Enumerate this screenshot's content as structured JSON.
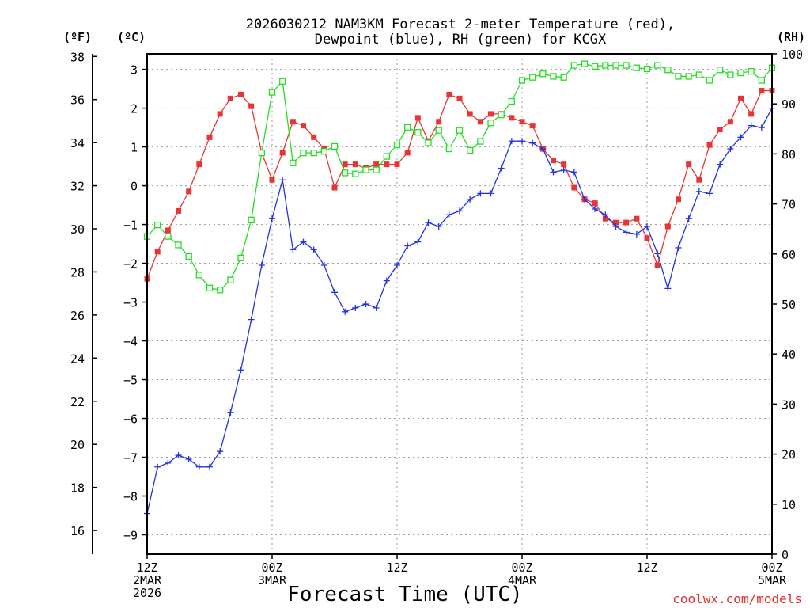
{
  "chart_data": {
    "type": "line",
    "title_lines": [
      "2026030212 NAM3KM Forecast 2-meter Temperature (red),",
      "Dewpoint (blue), RH (green) for KCGX"
    ],
    "xlabel": "Forecast Time (UTC)",
    "credit": "coolwx.com/models",
    "x_range_hours": [
      0,
      60
    ],
    "x_ticks": [
      {
        "hour": 0,
        "lines": [
          "12Z",
          "2MAR",
          "2026"
        ]
      },
      {
        "hour": 12,
        "lines": [
          "00Z",
          "3MAR"
        ]
      },
      {
        "hour": 24,
        "lines": [
          "12Z"
        ]
      },
      {
        "hour": 36,
        "lines": [
          "00Z",
          "4MAR"
        ]
      },
      {
        "hour": 48,
        "lines": [
          "12Z"
        ]
      },
      {
        "hour": 60,
        "lines": [
          "00Z",
          "5MAR"
        ]
      }
    ],
    "y_left_c": {
      "unit_label": "(ºC)",
      "range": [
        -9.5,
        3.4
      ],
      "ticks": [
        -9,
        -8,
        -7,
        -6,
        -5,
        -4,
        -3,
        -2,
        -1,
        0,
        1,
        2,
        3
      ]
    },
    "y_left_f": {
      "unit_label": "(ºF)",
      "range": [
        14.9,
        38.12
      ],
      "ticks": [
        16,
        18,
        20,
        22,
        24,
        26,
        28,
        30,
        32,
        34,
        36,
        38
      ]
    },
    "y_right_rh": {
      "unit_label": "(RH)",
      "range": [
        0,
        100
      ],
      "ticks": [
        0,
        10,
        20,
        30,
        40,
        50,
        60,
        70,
        80,
        90,
        100
      ]
    },
    "series": [
      {
        "name": "Temperature",
        "color": "#e83434",
        "marker": "filled-square",
        "x": [
          0,
          1,
          2,
          3,
          4,
          5,
          6,
          7,
          8,
          9,
          10,
          11,
          12,
          13,
          14,
          15,
          16,
          17,
          18,
          19,
          20,
          21,
          22,
          23,
          24,
          25,
          26,
          27,
          28,
          29,
          30,
          31,
          32,
          33,
          34,
          35,
          36,
          37,
          38,
          39,
          40,
          41,
          42,
          43,
          44,
          45,
          46,
          47,
          48,
          49,
          50,
          51,
          52,
          53,
          54,
          55,
          56,
          57,
          58,
          59,
          60
        ],
        "values": [
          -2.4,
          -1.7,
          -1.15,
          -0.65,
          -0.15,
          0.55,
          1.25,
          1.85,
          2.25,
          2.35,
          2.05,
          0.85,
          0.15,
          0.85,
          1.65,
          1.55,
          1.25,
          0.95,
          -0.05,
          0.55,
          0.55,
          0.45,
          0.55,
          0.55,
          0.55,
          0.85,
          1.75,
          1.15,
          1.65,
          2.35,
          2.25,
          1.85,
          1.65,
          1.85,
          1.85,
          1.75,
          1.65,
          1.55,
          0.95,
          0.65,
          0.55,
          -0.05,
          -0.35,
          -0.45,
          -0.85,
          -0.95,
          -0.95,
          -0.85,
          -1.35,
          -2.05,
          -1.05,
          -0.35,
          0.55,
          0.15,
          1.05,
          1.45,
          1.65,
          2.25,
          1.85,
          2.45,
          2.45
        ]
      },
      {
        "name": "Dewpoint",
        "color": "#2233dd",
        "marker": "plus",
        "x": [
          0,
          1,
          2,
          3,
          4,
          5,
          6,
          7,
          8,
          9,
          10,
          11,
          12,
          13,
          14,
          15,
          16,
          17,
          18,
          19,
          20,
          21,
          22,
          23,
          24,
          25,
          26,
          27,
          28,
          29,
          30,
          31,
          32,
          33,
          34,
          35,
          36,
          37,
          38,
          39,
          40,
          41,
          42,
          43,
          44,
          45,
          46,
          47,
          48,
          49,
          50,
          51,
          52,
          53,
          54,
          55,
          56,
          57,
          58,
          59,
          60
        ],
        "values": [
          -8.45,
          -7.25,
          -7.15,
          -6.95,
          -7.05,
          -7.25,
          -7.25,
          -6.85,
          -5.85,
          -4.75,
          -3.45,
          -2.05,
          -0.85,
          0.15,
          -1.65,
          -1.45,
          -1.65,
          -2.05,
          -2.75,
          -3.25,
          -3.15,
          -3.05,
          -3.15,
          -2.45,
          -2.05,
          -1.55,
          -1.45,
          -0.95,
          -1.05,
          -0.75,
          -0.65,
          -0.35,
          -0.2,
          -0.2,
          0.45,
          1.15,
          1.15,
          1.1,
          0.95,
          0.35,
          0.4,
          0.35,
          -0.35,
          -0.6,
          -0.75,
          -1.05,
          -1.2,
          -1.25,
          -1.05,
          -1.75,
          -2.65,
          -1.6,
          -0.85,
          -0.15,
          -0.2,
          0.55,
          0.95,
          1.25,
          1.55,
          1.5,
          2.0
        ]
      },
      {
        "name": "RH",
        "color": "#22dd22",
        "marker": "open-square",
        "axis": "rh",
        "x": [
          0,
          1,
          2,
          3,
          4,
          5,
          6,
          7,
          8,
          9,
          10,
          11,
          12,
          13,
          14,
          15,
          16,
          17,
          18,
          19,
          20,
          21,
          22,
          23,
          24,
          25,
          26,
          27,
          28,
          29,
          30,
          31,
          32,
          33,
          34,
          35,
          36,
          37,
          38,
          39,
          40,
          41,
          42,
          43,
          44,
          45,
          46,
          47,
          48,
          49,
          50,
          51,
          52,
          53,
          54,
          55,
          56,
          57,
          58,
          59,
          60
        ],
        "values": [
          63.5,
          65.8,
          63.5,
          61.8,
          59.5,
          55.8,
          53.2,
          52.8,
          54.8,
          59.2,
          66.8,
          80.2,
          92.3,
          94.5,
          78.2,
          80.2,
          80.2,
          80.5,
          81.5,
          76.2,
          76.0,
          76.8,
          76.8,
          79.5,
          81.8,
          85.3,
          84.3,
          82.2,
          84.7,
          81.0,
          84.7,
          80.7,
          82.5,
          86.2,
          87.8,
          90.5,
          94.7,
          95.3,
          96.0,
          95.5,
          95.3,
          97.7,
          98.0,
          97.5,
          97.7,
          97.7,
          97.7,
          97.2,
          97.0,
          97.7,
          96.8,
          95.5,
          95.5,
          95.8,
          94.7,
          96.8,
          95.8,
          96.2,
          96.5,
          94.7,
          97.2
        ]
      }
    ]
  }
}
